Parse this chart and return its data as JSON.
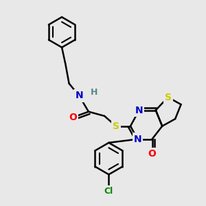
{
  "background_color": "#e8e8e8",
  "atom_colors": {
    "C": "#000000",
    "N": "#0000cc",
    "O": "#ff0000",
    "S": "#cccc00",
    "Cl": "#008800",
    "H": "#558888"
  },
  "bond_color": "#000000",
  "bond_width": 1.8,
  "figsize": [
    3.0,
    3.0
  ],
  "dpi": 100
}
